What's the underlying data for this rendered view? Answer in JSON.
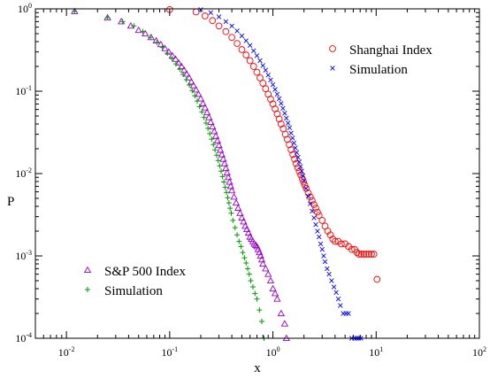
{
  "chart_data": {
    "type": "scatter",
    "title": "",
    "xlabel": "x",
    "ylabel": "P",
    "xscale": "log",
    "yscale": "log",
    "xlim": [
      0.005,
      100
    ],
    "ylim": [
      0.0001,
      1
    ],
    "x_ticks": [
      {
        "value": 0.01,
        "base": "10",
        "exp": "-2"
      },
      {
        "value": 0.1,
        "base": "10",
        "exp": "-1"
      },
      {
        "value": 1,
        "base": "10",
        "exp": "0"
      },
      {
        "value": 10,
        "base": "10",
        "exp": "1"
      },
      {
        "value": 100,
        "base": "10",
        "exp": "2"
      }
    ],
    "y_ticks": [
      {
        "value": 0.0001,
        "base": "10",
        "exp": "-4"
      },
      {
        "value": 0.001,
        "base": "10",
        "exp": "-3"
      },
      {
        "value": 0.01,
        "base": "10",
        "exp": "-2"
      },
      {
        "value": 0.1,
        "base": "10",
        "exp": "-1"
      },
      {
        "value": 1,
        "base": "10",
        "exp": "0"
      }
    ],
    "grid": false,
    "series": [
      {
        "name": "Shanghai Index",
        "marker": "circle",
        "color": "#ff0000",
        "x": [
          0.1,
          0.18,
          0.22,
          0.26,
          0.3,
          0.35,
          0.4,
          0.45,
          0.5,
          0.55,
          0.6,
          0.65,
          0.7,
          0.75,
          0.8,
          0.85,
          0.9,
          0.95,
          1.0,
          1.05,
          1.1,
          1.15,
          1.2,
          1.26,
          1.32,
          1.38,
          1.44,
          1.5,
          1.56,
          1.62,
          1.68,
          1.74,
          1.8,
          1.86,
          1.92,
          1.98,
          2.04,
          2.1,
          2.2,
          2.3,
          2.4,
          2.5,
          2.6,
          2.7,
          2.8,
          3.0,
          3.2,
          3.4,
          3.6,
          3.8,
          4.0,
          4.3,
          4.6,
          5.0,
          5.4,
          5.8,
          6.2,
          6.5,
          6.8,
          7.2,
          7.6,
          8.0,
          8.5,
          9.0,
          9.5,
          10.2
        ],
        "y": [
          0.98,
          0.92,
          0.82,
          0.72,
          0.62,
          0.53,
          0.45,
          0.38,
          0.32,
          0.275,
          0.235,
          0.2,
          0.17,
          0.145,
          0.125,
          0.107,
          0.092,
          0.08,
          0.07,
          0.061,
          0.053,
          0.046,
          0.04,
          0.035,
          0.03,
          0.026,
          0.0225,
          0.0195,
          0.017,
          0.015,
          0.0132,
          0.0118,
          0.0106,
          0.0096,
          0.0087,
          0.0079,
          0.0072,
          0.0066,
          0.0058,
          0.0052,
          0.0047,
          0.0042,
          0.0038,
          0.0034,
          0.0031,
          0.0027,
          0.0023,
          0.002,
          0.0018,
          0.0016,
          0.0015,
          0.0015,
          0.0014,
          0.0014,
          0.0013,
          0.0012,
          0.0012,
          0.0011,
          0.00105,
          0.00105,
          0.00105,
          0.00105,
          0.00105,
          0.00105,
          0.00105,
          0.00052
        ]
      },
      {
        "name": "Simulation",
        "marker": "x",
        "color": "#0000ff",
        "x": [
          0.2,
          0.25,
          0.3,
          0.35,
          0.4,
          0.45,
          0.5,
          0.55,
          0.6,
          0.65,
          0.7,
          0.75,
          0.8,
          0.85,
          0.9,
          0.95,
          1.0,
          1.05,
          1.1,
          1.15,
          1.2,
          1.25,
          1.3,
          1.35,
          1.4,
          1.45,
          1.5,
          1.55,
          1.6,
          1.65,
          1.7,
          1.75,
          1.8,
          1.85,
          1.9,
          1.95,
          2.0,
          2.1,
          2.2,
          2.3,
          2.4,
          2.5,
          2.6,
          2.7,
          2.8,
          2.9,
          3.0,
          3.1,
          3.2,
          3.35,
          3.5,
          3.7,
          3.9,
          4.1,
          4.3,
          4.5,
          4.8,
          5.1,
          5.4,
          5.8,
          6.2,
          6.5,
          6.8,
          7.1
        ],
        "y": [
          0.98,
          0.9,
          0.8,
          0.7,
          0.62,
          0.54,
          0.47,
          0.41,
          0.36,
          0.31,
          0.27,
          0.235,
          0.205,
          0.18,
          0.157,
          0.137,
          0.12,
          0.105,
          0.092,
          0.081,
          0.071,
          0.062,
          0.054,
          0.047,
          0.041,
          0.036,
          0.031,
          0.027,
          0.0235,
          0.0205,
          0.018,
          0.0158,
          0.0139,
          0.0122,
          0.0107,
          0.0094,
          0.0082,
          0.0066,
          0.0053,
          0.0043,
          0.0035,
          0.0029,
          0.0024,
          0.002,
          0.0017,
          0.0014,
          0.0012,
          0.001,
          0.00085,
          0.0007,
          0.0006,
          0.0005,
          0.00042,
          0.00036,
          0.0003,
          0.00025,
          0.0002,
          0.0002,
          0.0002,
          0.0001,
          0.0001,
          0.0001,
          0.0001,
          0.0001
        ]
      },
      {
        "name": "S&P 500 Index",
        "marker": "triangle",
        "color": "#9900cc",
        "x": [
          0.012,
          0.025,
          0.034,
          0.042,
          0.05,
          0.058,
          0.066,
          0.074,
          0.082,
          0.09,
          0.098,
          0.106,
          0.114,
          0.122,
          0.13,
          0.138,
          0.146,
          0.154,
          0.162,
          0.17,
          0.18,
          0.19,
          0.2,
          0.21,
          0.22,
          0.23,
          0.24,
          0.25,
          0.26,
          0.27,
          0.28,
          0.29,
          0.3,
          0.31,
          0.32,
          0.33,
          0.34,
          0.35,
          0.36,
          0.37,
          0.38,
          0.39,
          0.4,
          0.42,
          0.44,
          0.46,
          0.48,
          0.5,
          0.52,
          0.54,
          0.56,
          0.58,
          0.6,
          0.62,
          0.64,
          0.66,
          0.68,
          0.7,
          0.72,
          0.74,
          0.76,
          0.78,
          0.8,
          0.85,
          0.9,
          0.95,
          1.0,
          1.05,
          1.1,
          1.2,
          1.3,
          1.35
        ],
        "y": [
          0.93,
          0.78,
          0.7,
          0.62,
          0.55,
          0.5,
          0.45,
          0.41,
          0.37,
          0.33,
          0.3,
          0.27,
          0.245,
          0.22,
          0.2,
          0.18,
          0.162,
          0.146,
          0.13,
          0.117,
          0.104,
          0.092,
          0.081,
          0.071,
          0.063,
          0.055,
          0.048,
          0.042,
          0.037,
          0.0325,
          0.0285,
          0.025,
          0.022,
          0.0193,
          0.017,
          0.015,
          0.0132,
          0.0116,
          0.0102,
          0.009,
          0.0079,
          0.007,
          0.0062,
          0.0052,
          0.0044,
          0.0038,
          0.0033,
          0.0029,
          0.0026,
          0.0023,
          0.0021,
          0.0019,
          0.0017,
          0.0016,
          0.0015,
          0.0014,
          0.00135,
          0.0013,
          0.0012,
          0.0011,
          0.001,
          0.0009,
          0.0008,
          0.0007,
          0.0006,
          0.0005,
          0.0004,
          0.00035,
          0.0003,
          0.0002,
          0.00015,
          0.0001
        ]
      },
      {
        "name": "Simulation",
        "marker": "plus",
        "color": "#009900",
        "x": [
          0.012,
          0.025,
          0.035,
          0.045,
          0.055,
          0.065,
          0.075,
          0.085,
          0.095,
          0.105,
          0.115,
          0.125,
          0.135,
          0.145,
          0.155,
          0.165,
          0.175,
          0.185,
          0.195,
          0.205,
          0.215,
          0.225,
          0.235,
          0.245,
          0.255,
          0.265,
          0.275,
          0.285,
          0.295,
          0.305,
          0.315,
          0.325,
          0.335,
          0.345,
          0.355,
          0.365,
          0.375,
          0.385,
          0.395,
          0.41,
          0.43,
          0.45,
          0.47,
          0.49,
          0.51,
          0.53,
          0.55,
          0.57,
          0.59,
          0.61,
          0.64,
          0.67,
          0.7,
          0.74,
          0.78,
          0.82
        ],
        "y": [
          0.93,
          0.78,
          0.7,
          0.62,
          0.53,
          0.45,
          0.39,
          0.34,
          0.29,
          0.25,
          0.215,
          0.185,
          0.16,
          0.138,
          0.119,
          0.102,
          0.088,
          0.076,
          0.065,
          0.056,
          0.048,
          0.041,
          0.0355,
          0.0305,
          0.0262,
          0.0225,
          0.0194,
          0.0167,
          0.0144,
          0.0124,
          0.0107,
          0.0092,
          0.0079,
          0.0068,
          0.0059,
          0.0051,
          0.0044,
          0.0038,
          0.0033,
          0.0027,
          0.0022,
          0.0018,
          0.0015,
          0.0013,
          0.0011,
          0.00095,
          0.00082,
          0.0007,
          0.0006,
          0.0005,
          0.00042,
          0.00035,
          0.0003,
          0.00022,
          0.00016,
          0.0001
        ]
      }
    ],
    "legends": [
      {
        "placement": "top-right",
        "entries": [
          "Shanghai Index",
          "Simulation"
        ]
      },
      {
        "placement": "bottom-left",
        "entries": [
          "S&P 500 Index",
          "Simulation"
        ]
      }
    ]
  }
}
